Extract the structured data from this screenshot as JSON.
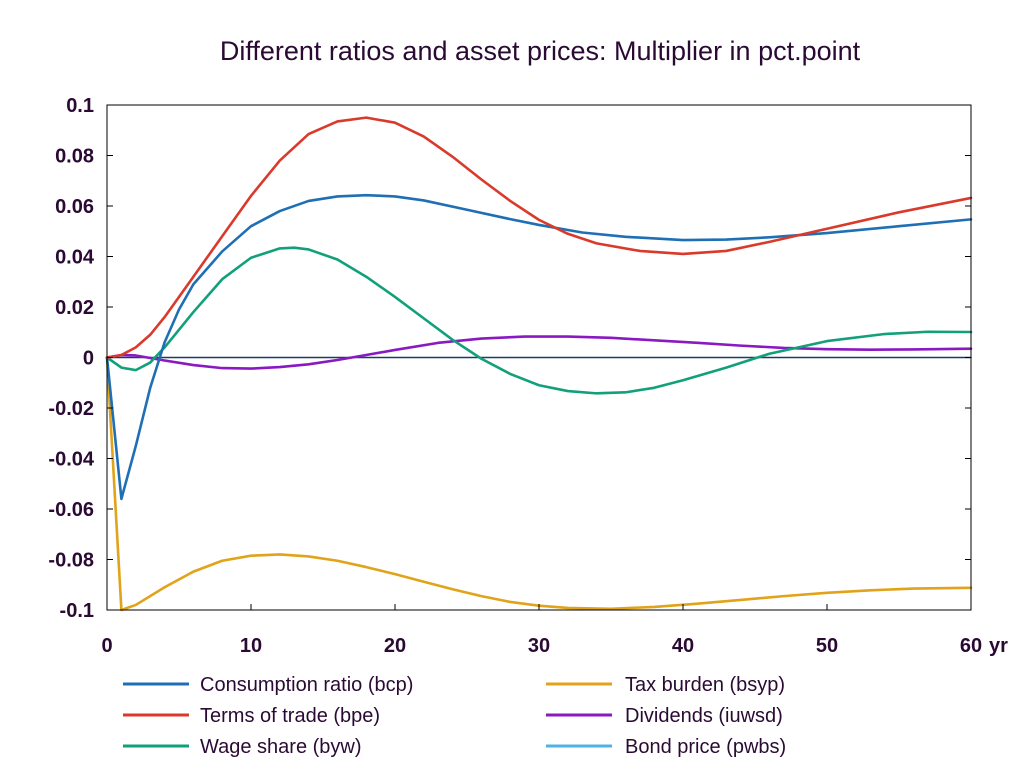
{
  "chart_data": {
    "type": "line",
    "title": "Different ratios and asset prices: Multiplier in pct.point",
    "xlabel": "",
    "ylabel": "",
    "x_unit_label": "yr",
    "xlim": [
      0,
      60
    ],
    "ylim": [
      -0.1,
      0.1
    ],
    "x_ticks": [
      "0",
      "10",
      "20",
      "30",
      "40",
      "50",
      "60"
    ],
    "y_ticks": [
      "0.1",
      "0.08",
      "0.06",
      "0.04",
      "0.02",
      "0",
      "-0.02",
      "-0.04",
      "-0.06",
      "-0.08",
      "-0.1"
    ],
    "x_tick_values": [
      0,
      10,
      20,
      30,
      40,
      50,
      60
    ],
    "y_tick_values": [
      0.1,
      0.08,
      0.06,
      0.04,
      0.02,
      0,
      -0.02,
      -0.04,
      -0.06,
      -0.08,
      -0.1
    ],
    "grid": false,
    "legend_position": "bottom",
    "series": [
      {
        "name": "Consumption ratio (bcp)",
        "color": "#1f6fb5",
        "points": [
          [
            0,
            0
          ],
          [
            1,
            -0.056
          ],
          [
            2,
            -0.035
          ],
          [
            3,
            -0.012
          ],
          [
            4,
            0.006
          ],
          [
            5,
            0.019
          ],
          [
            6,
            0.029
          ],
          [
            8,
            0.042
          ],
          [
            10,
            0.052
          ],
          [
            12,
            0.058
          ],
          [
            14,
            0.062
          ],
          [
            16,
            0.0638
          ],
          [
            18,
            0.0643
          ],
          [
            20,
            0.0638
          ],
          [
            22,
            0.0622
          ],
          [
            25,
            0.0585
          ],
          [
            28,
            0.0548
          ],
          [
            30,
            0.0525
          ],
          [
            33,
            0.0495
          ],
          [
            36,
            0.0478
          ],
          [
            40,
            0.0465
          ],
          [
            43,
            0.0467
          ],
          [
            46,
            0.0476
          ],
          [
            50,
            0.0493
          ],
          [
            55,
            0.052
          ],
          [
            60,
            0.0547
          ]
        ]
      },
      {
        "name": "Terms of trade (bpe)",
        "color": "#d93a2b",
        "points": [
          [
            0,
            0
          ],
          [
            1,
            0.001
          ],
          [
            2,
            0.004
          ],
          [
            3,
            0.009
          ],
          [
            4,
            0.016
          ],
          [
            6,
            0.032
          ],
          [
            8,
            0.048
          ],
          [
            10,
            0.064
          ],
          [
            12,
            0.078
          ],
          [
            14,
            0.0885
          ],
          [
            16,
            0.0935
          ],
          [
            18,
            0.095
          ],
          [
            20,
            0.093
          ],
          [
            22,
            0.0875
          ],
          [
            24,
            0.0795
          ],
          [
            26,
            0.0705
          ],
          [
            28,
            0.062
          ],
          [
            30,
            0.0545
          ],
          [
            32,
            0.049
          ],
          [
            34,
            0.0452
          ],
          [
            37,
            0.0422
          ],
          [
            40,
            0.041
          ],
          [
            43,
            0.0422
          ],
          [
            46,
            0.0458
          ],
          [
            50,
            0.051
          ],
          [
            55,
            0.0575
          ],
          [
            60,
            0.0632
          ]
        ]
      },
      {
        "name": "Wage share (byw)",
        "color": "#12a07a",
        "points": [
          [
            0,
            0
          ],
          [
            1,
            -0.004
          ],
          [
            2,
            -0.005
          ],
          [
            3,
            -0.002
          ],
          [
            4,
            0.004
          ],
          [
            6,
            0.018
          ],
          [
            8,
            0.031
          ],
          [
            10,
            0.0395
          ],
          [
            12,
            0.0432
          ],
          [
            13,
            0.0435
          ],
          [
            14,
            0.0428
          ],
          [
            16,
            0.0388
          ],
          [
            18,
            0.032
          ],
          [
            20,
            0.024
          ],
          [
            22,
            0.0155
          ],
          [
            24,
            0.007
          ],
          [
            26,
            -0.0005
          ],
          [
            28,
            -0.0065
          ],
          [
            30,
            -0.011
          ],
          [
            32,
            -0.0133
          ],
          [
            34,
            -0.0142
          ],
          [
            36,
            -0.0138
          ],
          [
            38,
            -0.012
          ],
          [
            40,
            -0.009
          ],
          [
            43,
            -0.004
          ],
          [
            46,
            0.0015
          ],
          [
            50,
            0.0065
          ],
          [
            54,
            0.0093
          ],
          [
            57,
            0.0102
          ],
          [
            60,
            0.0101
          ]
        ]
      },
      {
        "name": "Tax burden (bsyp)",
        "color": "#e0a31a",
        "points": [
          [
            0,
            0
          ],
          [
            1,
            -0.1
          ],
          [
            2,
            -0.098
          ],
          [
            4,
            -0.091
          ],
          [
            6,
            -0.0848
          ],
          [
            8,
            -0.0805
          ],
          [
            10,
            -0.0785
          ],
          [
            12,
            -0.078
          ],
          [
            14,
            -0.0788
          ],
          [
            16,
            -0.0805
          ],
          [
            18,
            -0.083
          ],
          [
            20,
            -0.0858
          ],
          [
            22,
            -0.0888
          ],
          [
            24,
            -0.0918
          ],
          [
            26,
            -0.0945
          ],
          [
            28,
            -0.0968
          ],
          [
            30,
            -0.0983
          ],
          [
            32,
            -0.0992
          ],
          [
            35,
            -0.0995
          ],
          [
            38,
            -0.0988
          ],
          [
            41,
            -0.0975
          ],
          [
            44,
            -0.096
          ],
          [
            47,
            -0.0945
          ],
          [
            50,
            -0.0932
          ],
          [
            53,
            -0.0922
          ],
          [
            56,
            -0.0915
          ],
          [
            60,
            -0.0912
          ]
        ]
      },
      {
        "name": "Dividends (iuwsd)",
        "color": "#8a19c2",
        "points": [
          [
            0,
            0
          ],
          [
            1,
            0.001
          ],
          [
            2,
            0.0008
          ],
          [
            4,
            -0.0012
          ],
          [
            6,
            -0.003
          ],
          [
            8,
            -0.0042
          ],
          [
            10,
            -0.0044
          ],
          [
            12,
            -0.0038
          ],
          [
            14,
            -0.0027
          ],
          [
            16,
            -0.001
          ],
          [
            18,
            0.001
          ],
          [
            20,
            0.003
          ],
          [
            23,
            0.0058
          ],
          [
            26,
            0.0075
          ],
          [
            29,
            0.0083
          ],
          [
            32,
            0.0083
          ],
          [
            35,
            0.0078
          ],
          [
            38,
            0.0068
          ],
          [
            41,
            0.0058
          ],
          [
            44,
            0.0047
          ],
          [
            47,
            0.0038
          ],
          [
            50,
            0.0033
          ],
          [
            53,
            0.0031
          ],
          [
            56,
            0.0032
          ],
          [
            60,
            0.0035
          ]
        ]
      },
      {
        "name": "Bond price (pwbs)",
        "color": "#4db3e6",
        "points": [
          [
            0,
            0
          ],
          [
            60,
            0
          ]
        ]
      }
    ],
    "zero_line_color": "#1a3a6b"
  }
}
